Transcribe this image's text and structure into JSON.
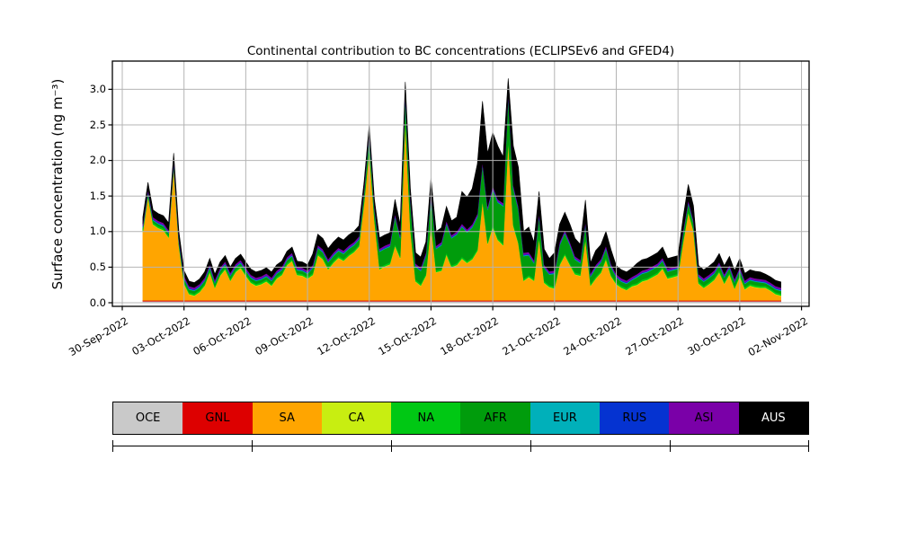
{
  "title": "Continental contribution to BC concentrations (ECLIPSEv6 and GFED4)",
  "axes": {
    "ylabel": "Surface concentration (ng m⁻³)",
    "ytick_labels": [
      "0.0",
      "0.5",
      "1.0",
      "1.5",
      "2.0",
      "2.5",
      "3.0"
    ],
    "xtick_labels": [
      "30-Sep-2022",
      "03-Oct-2022",
      "06-Oct-2022",
      "09-Oct-2022",
      "12-Oct-2022",
      "15-Oct-2022",
      "18-Oct-2022",
      "21-Oct-2022",
      "24-Oct-2022",
      "27-Oct-2022",
      "30-Oct-2022",
      "02-Nov-2022"
    ]
  },
  "legend": {
    "items": [
      {
        "label": "OCE",
        "color": "#c9c9c9",
        "text_color": "#000000"
      },
      {
        "label": "GNL",
        "color": "#dd0000",
        "text_color": "#000000"
      },
      {
        "label": "SA",
        "color": "#ffa500",
        "text_color": "#000000"
      },
      {
        "label": "CA",
        "color": "#c8ee11",
        "text_color": "#000000"
      },
      {
        "label": "NA",
        "color": "#00c814",
        "text_color": "#000000"
      },
      {
        "label": "AFR",
        "color": "#009c0c",
        "text_color": "#000000"
      },
      {
        "label": "EUR",
        "color": "#00b0ba",
        "text_color": "#000000"
      },
      {
        "label": "RUS",
        "color": "#0533d1",
        "text_color": "#000000"
      },
      {
        "label": "ASI",
        "color": "#7a00a8",
        "text_color": "#000000"
      },
      {
        "label": "AUS",
        "color": "#000000",
        "text_color": "#ffffff"
      }
    ]
  },
  "chart_data": {
    "type": "area",
    "stacked": true,
    "title": "Continental contribution to BC concentrations (ECLIPSEv6 and GFED4)",
    "xlabel": "",
    "ylabel": "Surface concentration (ng m⁻³)",
    "ylim": [
      -0.05,
      3.4
    ],
    "yticks": [
      0.0,
      0.5,
      1.0,
      1.5,
      2.0,
      2.5,
      3.0
    ],
    "grid": true,
    "x_first_tick": "30-Sep-2022",
    "x_last_tick": "02-Nov-2022",
    "x_tick_interval_days": 3,
    "series_start": "01-Oct-2022 00:00",
    "series_step_hours": 6,
    "series": [
      {
        "name": "OCE",
        "color": "#c9c9c9",
        "constant": 0.022
      },
      {
        "name": "GNL",
        "color": "#dd0000",
        "constant": 0.012
      },
      {
        "name": "SA",
        "color": "#ffa500",
        "values": [
          0.96,
          1.45,
          1.06,
          1.01,
          0.98,
          0.88,
          1.86,
          0.76,
          0.23,
          0.08,
          0.06,
          0.11,
          0.2,
          0.39,
          0.17,
          0.34,
          0.43,
          0.27,
          0.39,
          0.45,
          0.34,
          0.24,
          0.2,
          0.22,
          0.26,
          0.2,
          0.3,
          0.35,
          0.49,
          0.55,
          0.35,
          0.34,
          0.3,
          0.35,
          0.63,
          0.57,
          0.43,
          0.52,
          0.59,
          0.55,
          0.62,
          0.67,
          0.75,
          1.37,
          2.11,
          1.12,
          0.43,
          0.47,
          0.5,
          0.76,
          0.59,
          2.54,
          0.99,
          0.26,
          0.2,
          0.34,
          1.08,
          0.39,
          0.41,
          0.64,
          0.46,
          0.49,
          0.58,
          0.52,
          0.57,
          0.69,
          1.39,
          0.79,
          1.03,
          0.84,
          0.77,
          2.24,
          1.04,
          0.79,
          0.27,
          0.32,
          0.27,
          0.87,
          0.24,
          0.18,
          0.16,
          0.49,
          0.63,
          0.49,
          0.36,
          0.34,
          0.85,
          0.2,
          0.3,
          0.38,
          0.57,
          0.33,
          0.22,
          0.17,
          0.14,
          0.19,
          0.21,
          0.26,
          0.28,
          0.32,
          0.36,
          0.44,
          0.3,
          0.32,
          0.34,
          0.81,
          1.23,
          0.97,
          0.23,
          0.17,
          0.22,
          0.28,
          0.39,
          0.23,
          0.36,
          0.16,
          0.33,
          0.15,
          0.2,
          0.18,
          0.17,
          0.17,
          0.13,
          0.08,
          0.06
        ]
      },
      {
        "name": "CA",
        "color": "#c8ee11",
        "constant": 0.008
      },
      {
        "name": "NA",
        "color": "#00c814",
        "constant": 0.025
      },
      {
        "name": "AFR",
        "color": "#009c0c",
        "values": [
          0.03,
          0.03,
          0.03,
          0.03,
          0.03,
          0.03,
          0.03,
          0.03,
          0.04,
          0.04,
          0.04,
          0.04,
          0.04,
          0.04,
          0.04,
          0.04,
          0.04,
          0.04,
          0.04,
          0.04,
          0.04,
          0.04,
          0.04,
          0.04,
          0.04,
          0.04,
          0.04,
          0.04,
          0.04,
          0.04,
          0.04,
          0.04,
          0.04,
          0.07,
          0.07,
          0.07,
          0.07,
          0.07,
          0.07,
          0.07,
          0.07,
          0.07,
          0.07,
          0.12,
          0.18,
          0.12,
          0.22,
          0.22,
          0.22,
          0.38,
          0.25,
          0.3,
          0.35,
          0.18,
          0.18,
          0.25,
          0.38,
          0.3,
          0.33,
          0.4,
          0.38,
          0.4,
          0.42,
          0.4,
          0.42,
          0.45,
          0.48,
          0.45,
          0.5,
          0.5,
          0.52,
          0.6,
          0.5,
          0.45,
          0.32,
          0.28,
          0.22,
          0.28,
          0.18,
          0.15,
          0.18,
          0.25,
          0.28,
          0.25,
          0.18,
          0.15,
          0.18,
          0.1,
          0.12,
          0.12,
          0.12,
          0.1,
          0.07,
          0.06,
          0.06,
          0.06,
          0.08,
          0.08,
          0.08,
          0.08,
          0.08,
          0.08,
          0.07,
          0.07,
          0.07,
          0.1,
          0.1,
          0.08,
          0.06,
          0.06,
          0.06,
          0.06,
          0.07,
          0.06,
          0.06,
          0.06,
          0.06,
          0.05,
          0.05,
          0.05,
          0.05,
          0.04,
          0.04,
          0.04,
          0.04
        ]
      },
      {
        "name": "EUR",
        "color": "#00b0ba",
        "constant": 0.01
      },
      {
        "name": "RUS",
        "color": "#0533d1",
        "constant": 0.008
      },
      {
        "name": "ASI",
        "color": "#7a00a8",
        "constant": 0.028
      },
      {
        "name": "AUS",
        "color": "#000000",
        "values": [
          0.1,
          0.1,
          0.1,
          0.1,
          0.1,
          0.1,
          0.1,
          0.1,
          0.07,
          0.07,
          0.07,
          0.07,
          0.08,
          0.08,
          0.08,
          0.08,
          0.08,
          0.08,
          0.08,
          0.08,
          0.08,
          0.08,
          0.08,
          0.08,
          0.08,
          0.08,
          0.08,
          0.08,
          0.08,
          0.08,
          0.08,
          0.08,
          0.08,
          0.15,
          0.15,
          0.15,
          0.15,
          0.15,
          0.15,
          0.15,
          0.15,
          0.15,
          0.15,
          0.1,
          0.1,
          0.1,
          0.15,
          0.15,
          0.15,
          0.2,
          0.15,
          0.15,
          0.15,
          0.15,
          0.15,
          0.15,
          0.18,
          0.2,
          0.2,
          0.2,
          0.2,
          0.2,
          0.45,
          0.45,
          0.5,
          0.7,
          0.85,
          0.75,
          0.75,
          0.75,
          0.65,
          0.2,
          0.55,
          0.55,
          0.3,
          0.35,
          0.25,
          0.3,
          0.22,
          0.18,
          0.25,
          0.25,
          0.25,
          0.25,
          0.25,
          0.22,
          0.3,
          0.15,
          0.2,
          0.2,
          0.2,
          0.2,
          0.12,
          0.12,
          0.12,
          0.12,
          0.15,
          0.15,
          0.15,
          0.15,
          0.15,
          0.15,
          0.14,
          0.14,
          0.14,
          0.18,
          0.22,
          0.2,
          0.12,
          0.12,
          0.12,
          0.12,
          0.12,
          0.12,
          0.12,
          0.12,
          0.12,
          0.1,
          0.1,
          0.1,
          0.1,
          0.08,
          0.08,
          0.08,
          0.08
        ]
      }
    ]
  }
}
